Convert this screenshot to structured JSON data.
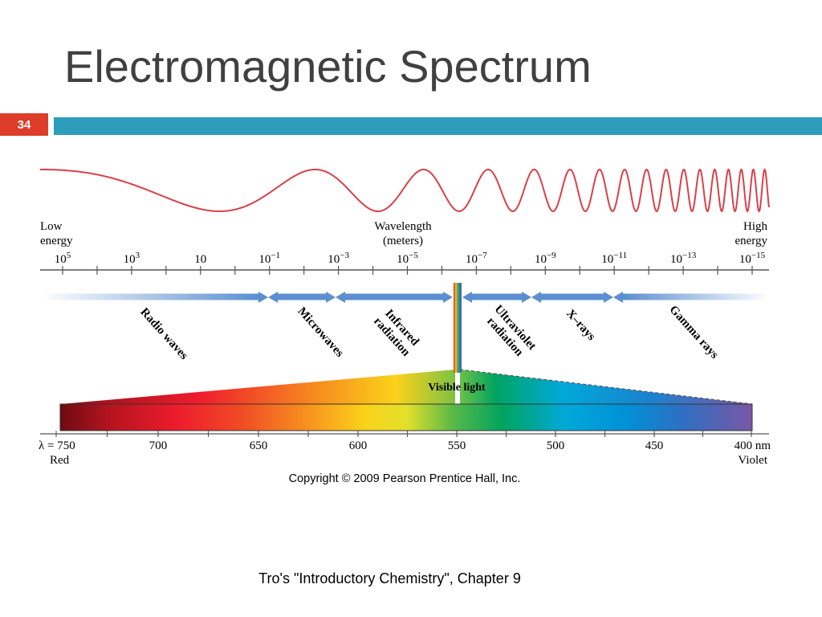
{
  "slide": {
    "title": "Electromagnetic Spectrum",
    "page_number": "34",
    "footer": "Tro's \"Introductory Chemistry\", Chapter 9"
  },
  "figure": {
    "low_energy": [
      "Low",
      "energy"
    ],
    "high_energy": [
      "High",
      "energy"
    ],
    "wavelength_label": [
      "Wavelength",
      "(meters)"
    ],
    "wavelength_ticks": [
      {
        "base": "10",
        "exp": "5"
      },
      {
        "base": "10",
        "exp": "3"
      },
      {
        "base": "10",
        "exp": ""
      },
      {
        "base": "10",
        "exp": "−1"
      },
      {
        "base": "10",
        "exp": "−3"
      },
      {
        "base": "10",
        "exp": "−5"
      },
      {
        "base": "10",
        "exp": "−7"
      },
      {
        "base": "10",
        "exp": "−9"
      },
      {
        "base": "10",
        "exp": "−11"
      },
      {
        "base": "10",
        "exp": "−13"
      },
      {
        "base": "10",
        "exp": "−15"
      }
    ],
    "regions": [
      {
        "lines": [
          "Radio waves"
        ]
      },
      {
        "lines": [
          "Microwaves"
        ]
      },
      {
        "lines": [
          "Infrared",
          "radiation"
        ]
      },
      {
        "lines": [
          "Ultraviolet",
          "radiation"
        ]
      },
      {
        "lines": [
          "X–rays"
        ]
      },
      {
        "lines": [
          "Gamma rays"
        ]
      }
    ],
    "visible_light_label": "Visible light",
    "visible_scale": [
      "λ = 750",
      "700",
      "650",
      "600",
      "550",
      "500",
      "450",
      "400 nm"
    ],
    "red_label": "Red",
    "violet_label": "Violet",
    "copyright": "Copyright © 2009 Pearson Prentice Hall, Inc.",
    "colors": {
      "wave": "#d9404a",
      "arrow": "#5b8fd0",
      "accent": "#dd3d2a",
      "banner": "#2e9cbb"
    }
  }
}
